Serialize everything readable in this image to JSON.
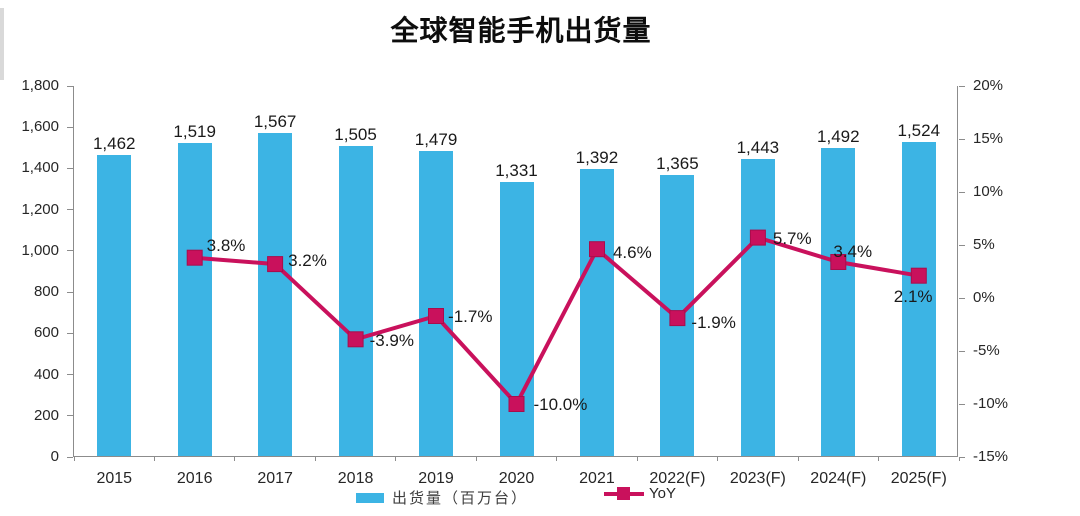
{
  "title": "全球智能手机出货量",
  "chart_data": {
    "type": "combo",
    "title": "全球智能手机出货量",
    "categories": [
      "2015",
      "2016",
      "2017",
      "2018",
      "2019",
      "2020",
      "2021",
      "2022(F)",
      "2023(F)",
      "2024(F)",
      "2025(F)"
    ],
    "series": [
      {
        "name": "出货量（百万台）",
        "type": "bar",
        "color": "#3CB4E4",
        "values": [
          1462,
          1519,
          1567,
          1505,
          1479,
          1331,
          1392,
          1365,
          1443,
          1492,
          1524
        ],
        "labels": [
          "1,462",
          "1,519",
          "1,567",
          "1,505",
          "1,479",
          "1,331",
          "1,392",
          "1,365",
          "1,443",
          "1,492",
          "1,524"
        ]
      },
      {
        "name": "YoY",
        "type": "line",
        "color": "#C9115C",
        "marker": "square",
        "marker_edge_color": "#A80D4C",
        "values": [
          null,
          3.8,
          3.2,
          -3.9,
          -1.7,
          -10.0,
          4.6,
          -1.9,
          5.7,
          3.4,
          2.1
        ],
        "labels": [
          null,
          "3.8%",
          "3.2%",
          "-3.9%",
          "-1.7%",
          "-10.0%",
          "4.6%",
          "-1.9%",
          "5.7%",
          "3.4%",
          "2.1%"
        ],
        "label_offsets": [
          null,
          [
            12,
            -21
          ],
          [
            13,
            -12
          ],
          [
            14,
            -7
          ],
          [
            12,
            -8
          ],
          [
            17,
            -8
          ],
          [
            16,
            -5
          ],
          [
            14,
            -4
          ],
          [
            15,
            -8
          ],
          [
            -5,
            -19
          ],
          [
            -25,
            12
          ]
        ]
      }
    ],
    "left_axis": {
      "min": 0,
      "max": 1800,
      "tick_step": 200,
      "ticks": [
        "0",
        "200",
        "400",
        "600",
        "800",
        "1,000",
        "1,200",
        "1,400",
        "1,600",
        "1,800"
      ]
    },
    "right_axis": {
      "min": -15,
      "max": 20,
      "tick_step": 5,
      "ticks": [
        "-15%",
        "-10%",
        "-5%",
        "0%",
        "5%",
        "10%",
        "15%",
        "20%"
      ]
    },
    "grid": false,
    "legend_position": "bottom-center"
  }
}
